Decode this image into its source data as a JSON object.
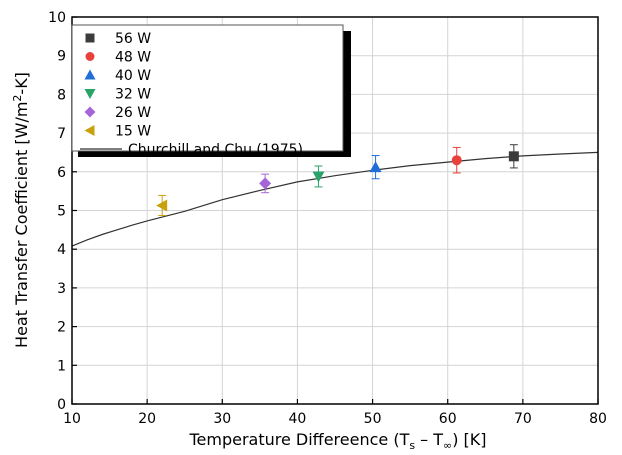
{
  "chart_data": {
    "type": "scatter",
    "xlabel": {
      "main": "Temperature Differeence (T",
      "sub1": "s",
      "mid": " – T",
      "sub2": "∞",
      "end": ") [K]"
    },
    "ylabel": {
      "main": "Heat Transfer Coefficient [W/m",
      "sup": "2",
      "end": "-K]"
    },
    "xlim": [
      10,
      80
    ],
    "ylim": [
      0,
      10
    ],
    "xticks": [
      10,
      20,
      30,
      40,
      50,
      60,
      70,
      80
    ],
    "yticks": [
      0,
      1,
      2,
      3,
      4,
      5,
      6,
      7,
      8,
      9,
      10
    ],
    "grid": true,
    "legend_position": "top-left",
    "series": [
      {
        "name": "56 W",
        "marker": "square",
        "color": "#3c3c3c",
        "x": 68.8,
        "y": 6.4,
        "err": 0.3
      },
      {
        "name": "48 W",
        "marker": "circle",
        "color": "#e8403a",
        "x": 61.2,
        "y": 6.3,
        "err": 0.33
      },
      {
        "name": "40 W",
        "marker": "triangle-up",
        "color": "#1f6fd6",
        "x": 50.4,
        "y": 6.12,
        "err": 0.3
      },
      {
        "name": "32 W",
        "marker": "triangle-down",
        "color": "#2aa36a",
        "x": 42.8,
        "y": 5.88,
        "err": 0.27
      },
      {
        "name": "26 W",
        "marker": "diamond",
        "color": "#a565d8",
        "x": 35.7,
        "y": 5.7,
        "err": 0.24
      },
      {
        "name": "15 W",
        "marker": "triangle-left",
        "color": "#c9a00e",
        "x": 22.0,
        "y": 5.13,
        "err": 0.26
      }
    ],
    "curve": {
      "name": "Churchill and Chu (1975)",
      "color": "#333333",
      "x": [
        10,
        12,
        14,
        16,
        18,
        20,
        22,
        25,
        30,
        35,
        40,
        45,
        50,
        55,
        60,
        65,
        70,
        75,
        80
      ],
      "y": [
        4.08,
        4.24,
        4.38,
        4.5,
        4.62,
        4.73,
        4.83,
        4.98,
        5.28,
        5.52,
        5.74,
        5.9,
        6.04,
        6.16,
        6.25,
        6.34,
        6.41,
        6.46,
        6.5
      ]
    }
  }
}
